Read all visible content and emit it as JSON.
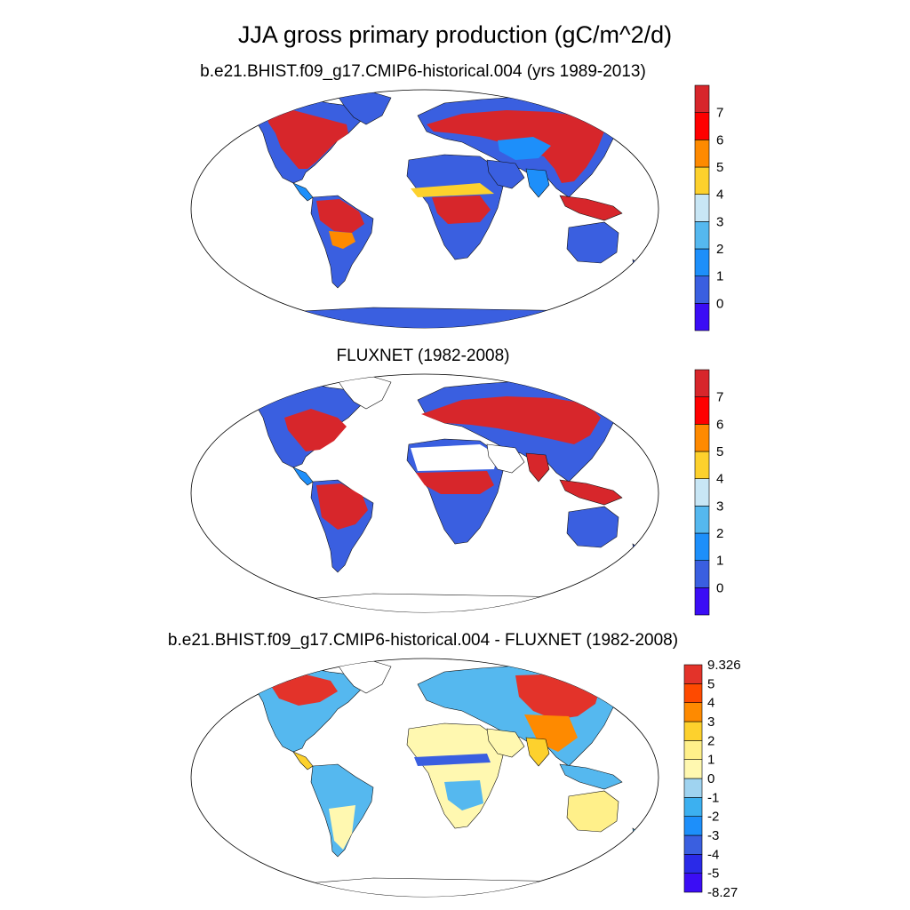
{
  "figure": {
    "title": "JJA gross primary production (gC/m^2/d)"
  },
  "panels": [
    {
      "id": "model",
      "title": "b.e21.BHIST.f09_g17.CMIP6-historical.004 (yrs 1989-2013)",
      "colorbar": {
        "tick_labels": [
          "0",
          "1",
          "2",
          "3",
          "4",
          "5",
          "6",
          "7"
        ],
        "colors": [
          "#3b0df5",
          "#3a5fe0",
          "#1d8ffa",
          "#55b8ef",
          "#c8e6f5",
          "#fdd12d",
          "#fe8a00",
          "#fe0000",
          "#d7262b"
        ]
      }
    },
    {
      "id": "obs",
      "title": "FLUXNET (1982-2008)",
      "colorbar": {
        "tick_labels": [
          "0",
          "1",
          "2",
          "3",
          "4",
          "5",
          "6",
          "7"
        ],
        "colors": [
          "#3b0df5",
          "#3a5fe0",
          "#1d8ffa",
          "#55b8ef",
          "#c8e6f5",
          "#fdd12d",
          "#fe8a00",
          "#fe0000",
          "#d7262b"
        ]
      }
    },
    {
      "id": "diff",
      "title": "b.e21.BHIST.f09_g17.CMIP6-historical.004 - FLUXNET (1982-2008)",
      "colorbar": {
        "tick_labels": [
          "-8.27",
          "-5",
          "-4",
          "-3",
          "-2",
          "-1",
          "0",
          "1",
          "2",
          "3",
          "4",
          "5",
          "9.326"
        ],
        "colors": [
          "#3b0df5",
          "#2a2ae8",
          "#3a5fe0",
          "#1d8ffa",
          "#3cb0f0",
          "#9fd3f0",
          "#fff8b0",
          "#fff08a",
          "#fdd12d",
          "#fe8a00",
          "#fe4a00",
          "#e3332a"
        ]
      }
    }
  ]
}
